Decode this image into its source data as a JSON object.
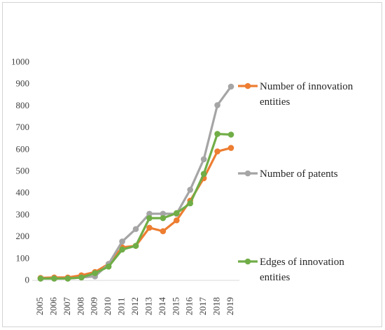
{
  "chart_data": {
    "type": "line",
    "x": [
      "2005",
      "2006",
      "2007",
      "2008",
      "2009",
      "2010",
      "2011",
      "2012",
      "2013",
      "2014",
      "2015",
      "2016",
      "2017",
      "2018",
      "2019"
    ],
    "ylim": [
      0,
      1000
    ],
    "yticks": [
      "0",
      "100",
      "200",
      "300",
      "400",
      "500",
      "600",
      "700",
      "800",
      "900",
      "1000"
    ],
    "grid": false,
    "legend_position": "right",
    "series": [
      {
        "name": "Number of innovation entities",
        "color": "#ED7D31",
        "values": [
          8,
          10,
          10,
          20,
          35,
          72,
          148,
          155,
          238,
          222,
          272,
          362,
          465,
          588,
          604
        ]
      },
      {
        "name": "Number of patents",
        "color": "#A5A5A5",
        "values": [
          5,
          5,
          5,
          10,
          15,
          72,
          175,
          232,
          302,
          302,
          302,
          412,
          552,
          800,
          885
        ]
      },
      {
        "name": "Edges of innovation entities",
        "color": "#70AD47",
        "values": [
          5,
          5,
          5,
          10,
          30,
          60,
          138,
          155,
          282,
          282,
          305,
          350,
          485,
          668,
          665
        ]
      }
    ]
  }
}
